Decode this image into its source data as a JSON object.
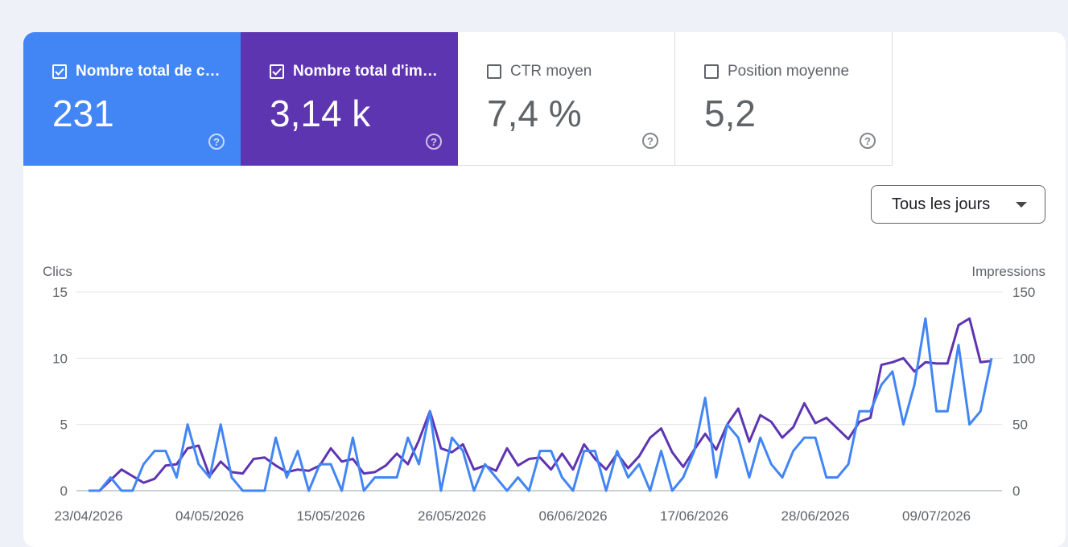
{
  "metrics": [
    {
      "label": "Nombre total de c…",
      "value": "231",
      "selected": true,
      "color": "#4285f4"
    },
    {
      "label": "Nombre total d'im…",
      "value": "3,14 k",
      "selected": true,
      "color": "#5e35b1"
    },
    {
      "label": "CTR moyen",
      "value": "7,4 %",
      "selected": false
    },
    {
      "label": "Position moyenne",
      "value": "5,2",
      "selected": false
    }
  ],
  "icons": {
    "checkbox_checked": "check-icon",
    "help": "help-circle-icon",
    "dropdown": "arrow-drop-down-icon"
  },
  "date_range": {
    "label": "Tous les jours"
  },
  "chart_data": {
    "type": "line",
    "left_axis_title": "Clics",
    "right_axis_title": "Impressions",
    "left_ticks": [
      "0",
      "5",
      "10",
      "15"
    ],
    "right_ticks": [
      "0",
      "50",
      "100",
      "150"
    ],
    "ylim_left": [
      0,
      15
    ],
    "ylim_right": [
      0,
      150
    ],
    "x_tick_labels": [
      "23/04/2026",
      "04/05/2026",
      "15/05/2026",
      "26/05/2026",
      "06/06/2026",
      "17/06/2026",
      "28/06/2026",
      "09/07/2026"
    ],
    "x_tick_indices": [
      0,
      11,
      22,
      33,
      44,
      55,
      66,
      77
    ],
    "grid": true,
    "series": [
      {
        "axis": "right",
        "color": "#5e35b1",
        "values": [
          0,
          0,
          8,
          16,
          11,
          6,
          9,
          19,
          20,
          32,
          34,
          11,
          22,
          14,
          13,
          24,
          25,
          19,
          14,
          16,
          15,
          19,
          32,
          22,
          24,
          13,
          14,
          19,
          28,
          20,
          38,
          60,
          32,
          29,
          35,
          16,
          19,
          15,
          32,
          19,
          24,
          25,
          16,
          28,
          16,
          35,
          24,
          16,
          28,
          17,
          26,
          40,
          47,
          29,
          18,
          31,
          43,
          31,
          50,
          62,
          37,
          57,
          52,
          40,
          48,
          66,
          51,
          55,
          47,
          39,
          52,
          55,
          95,
          97,
          100,
          90,
          97,
          96,
          96,
          125,
          130,
          97,
          98
        ],
        "name": ""
      },
      {
        "axis": "left",
        "color": "#4285f4",
        "values": [
          0,
          0,
          1,
          0,
          0,
          2,
          3,
          3,
          1,
          5,
          2,
          1,
          5,
          1,
          0,
          0,
          0,
          4,
          1,
          3,
          0,
          2,
          2,
          0,
          4,
          0,
          1,
          1,
          1,
          4,
          2,
          6,
          0,
          4,
          3,
          0,
          2,
          1,
          0,
          1,
          0,
          3,
          3,
          1,
          0,
          3,
          3,
          0,
          3,
          1,
          2,
          0,
          3,
          0,
          1,
          3,
          7,
          1,
          5,
          4,
          1,
          4,
          2,
          1,
          3,
          4,
          4,
          1,
          1,
          2,
          6,
          6,
          8,
          9,
          5,
          8,
          13,
          6,
          6,
          11,
          5,
          6,
          10
        ],
        "name": ""
      }
    ]
  }
}
